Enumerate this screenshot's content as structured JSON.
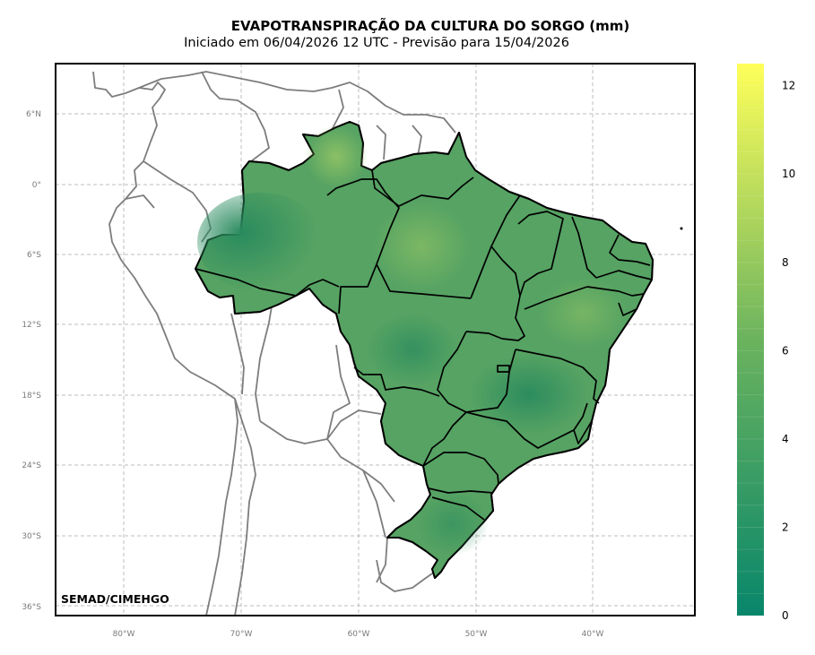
{
  "title": "EVAPOTRANSPIRAÇÃO DA CULTURA DO SORGO (mm)",
  "subtitle": "Iniciado em 06/04/2026 12 UTC - Previsão para 15/04/2026",
  "credit": "SEMAD/CIMEHGO",
  "lat_ticks": [
    "6°N",
    "0°",
    "6°S",
    "12°S",
    "18°S",
    "24°S",
    "30°S",
    "36°S"
  ],
  "lon_ticks": [
    "80°W",
    "70°W",
    "60°W",
    "50°W",
    "40°W"
  ],
  "colorbar": {
    "min": 0,
    "max": 12.5,
    "ticks": [
      "0",
      "2",
      "4",
      "6",
      "8",
      "10",
      "12"
    ],
    "colors": {
      "low": "#08866a",
      "mid": "#6bb35e",
      "high": "#ffff5a"
    }
  },
  "field_colors": {
    "dark": "#2f9061",
    "base": "#56a363",
    "light": "#7cb665"
  }
}
